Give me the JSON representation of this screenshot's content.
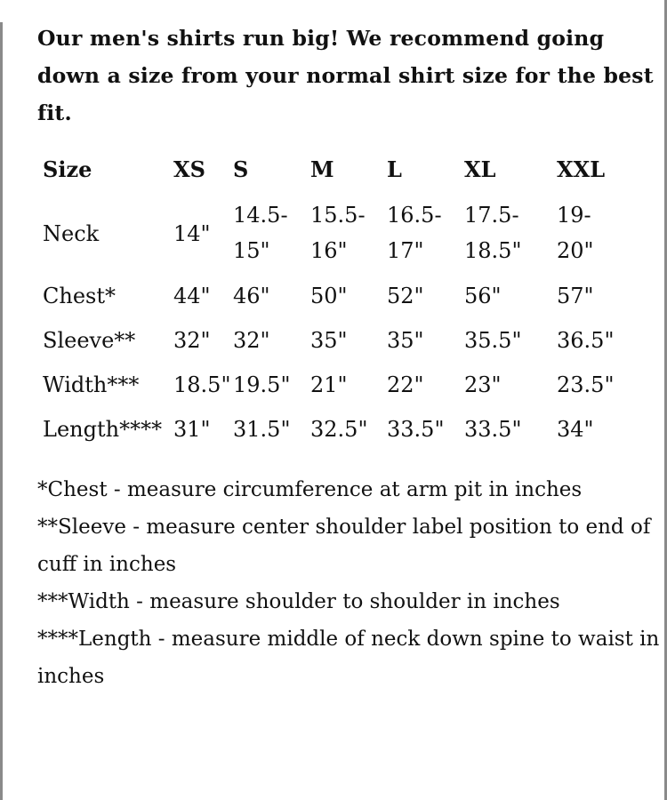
{
  "intro": "Our men's shirts run big! We recommend going down a size from your normal shirt size for the best fit.",
  "table": {
    "headers": [
      "Size",
      "XS",
      "S",
      "M",
      "L",
      "XL",
      "XXL"
    ],
    "rows": [
      {
        "label": "Neck",
        "values": [
          "14\"",
          "14.5-\n15\"",
          "15.5-\n16\"",
          "16.5-\n17\"",
          "17.5-\n18.5\"",
          "19-\n20\""
        ]
      },
      {
        "label": "Chest*",
        "values": [
          "44\"",
          "46\"",
          "50\"",
          "52\"",
          "56\"",
          "57\""
        ]
      },
      {
        "label": "Sleeve**",
        "values": [
          "32\"",
          "32\"",
          "35\"",
          "35\"",
          "35.5\"",
          "36.5\""
        ]
      },
      {
        "label": "Width***",
        "values": [
          "18.5\"",
          "19.5\"",
          "21\"",
          "22\"",
          "23\"",
          "23.5\""
        ]
      },
      {
        "label": "Length****",
        "values": [
          "31\"",
          "31.5\"",
          "32.5\"",
          "33.5\"",
          "33.5\"",
          "34\""
        ]
      }
    ]
  },
  "notes": [
    "*Chest - measure circumference at arm pit in inches",
    "**Sleeve - measure center shoulder label position to end of cuff in inches",
    "***Width - measure shoulder to shoulder in inches",
    "****Length - measure middle of neck down spine to waist in inches"
  ]
}
